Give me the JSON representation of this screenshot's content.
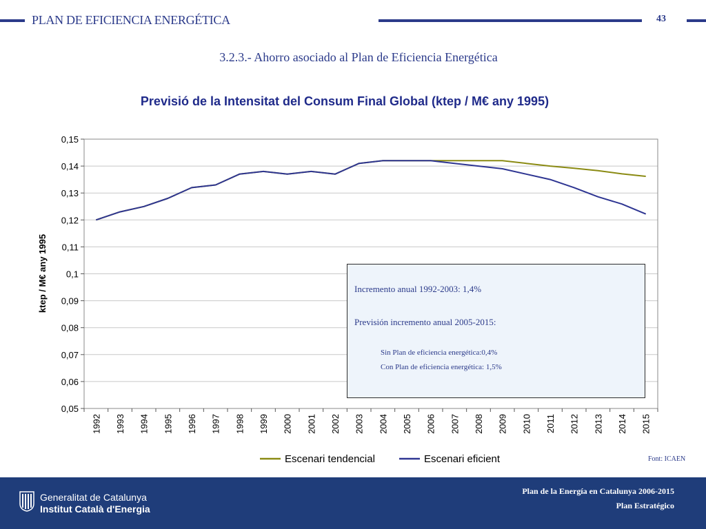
{
  "header": {
    "title": "PLAN DE EFICIENCIA ENERGÉTICA",
    "page_number": "43",
    "section_title": "3.2.3.- Ahorro asociado al Plan de Eficiencia Energética"
  },
  "colors": {
    "brand_blue": "#2b3a8a",
    "footer_blue": "#1f3d7a",
    "series_tendencial": "#8a8a12",
    "series_eficient": "#2e3592"
  },
  "chart_data": {
    "type": "line",
    "title": "Previsió de la Intensitat del Consum Final Global (ktep / M€ any 1995)",
    "xlabel": "",
    "ylabel": "ktep / M€ any 1995",
    "ylim": [
      0.05,
      0.15
    ],
    "yticks": [
      "0,05",
      "0,06",
      "0,07",
      "0,08",
      "0,09",
      "0,1",
      "0,11",
      "0,12",
      "0,13",
      "0,14",
      "0,15"
    ],
    "grid": true,
    "legend_position": "bottom",
    "categories": [
      "1992",
      "1993",
      "1994",
      "1995",
      "1996",
      "1997",
      "1998",
      "1999",
      "2000",
      "2001",
      "2002",
      "2003",
      "2004",
      "2005",
      "2006",
      "2007",
      "2008",
      "2009",
      "2010",
      "2011",
      "2012",
      "2013",
      "2014",
      "2015"
    ],
    "series": [
      {
        "name": "Escenari tendencial",
        "values": [
          0.12,
          0.123,
          0.125,
          0.128,
          0.132,
          0.133,
          0.137,
          0.138,
          0.137,
          0.138,
          0.137,
          0.141,
          0.142,
          0.142,
          0.142,
          0.142,
          0.142,
          0.142,
          0.141,
          0.14,
          0.1392,
          0.1383,
          0.1371,
          0.1362
        ]
      },
      {
        "name": "Escenari eficient",
        "values": [
          0.12,
          0.123,
          0.125,
          0.128,
          0.132,
          0.133,
          0.137,
          0.138,
          0.137,
          0.138,
          0.137,
          0.141,
          0.142,
          0.142,
          0.142,
          0.141,
          0.14,
          0.139,
          0.137,
          0.135,
          0.132,
          0.1286,
          0.1259,
          0.1222
        ]
      }
    ],
    "annotation": {
      "line1": "Incremento anual 1992-2003: 1,4%",
      "line2": "Previsión incremento anual 2005-2015:",
      "line3": "Sin Plan de eficiencia energética:0,4%",
      "line4": "Con Plan de eficiencia energética: 1,5%"
    }
  },
  "source": "Font: ICAEN",
  "footer": {
    "org_line1": "Generalitat de Catalunya",
    "org_line2": "Institut Català d'Energia",
    "plan_line1": "Plan de la Energía en Catalunya 2006-2015",
    "plan_line2": "Plan Estratégico",
    "logo_icon": "generalitat-logo-icon"
  }
}
